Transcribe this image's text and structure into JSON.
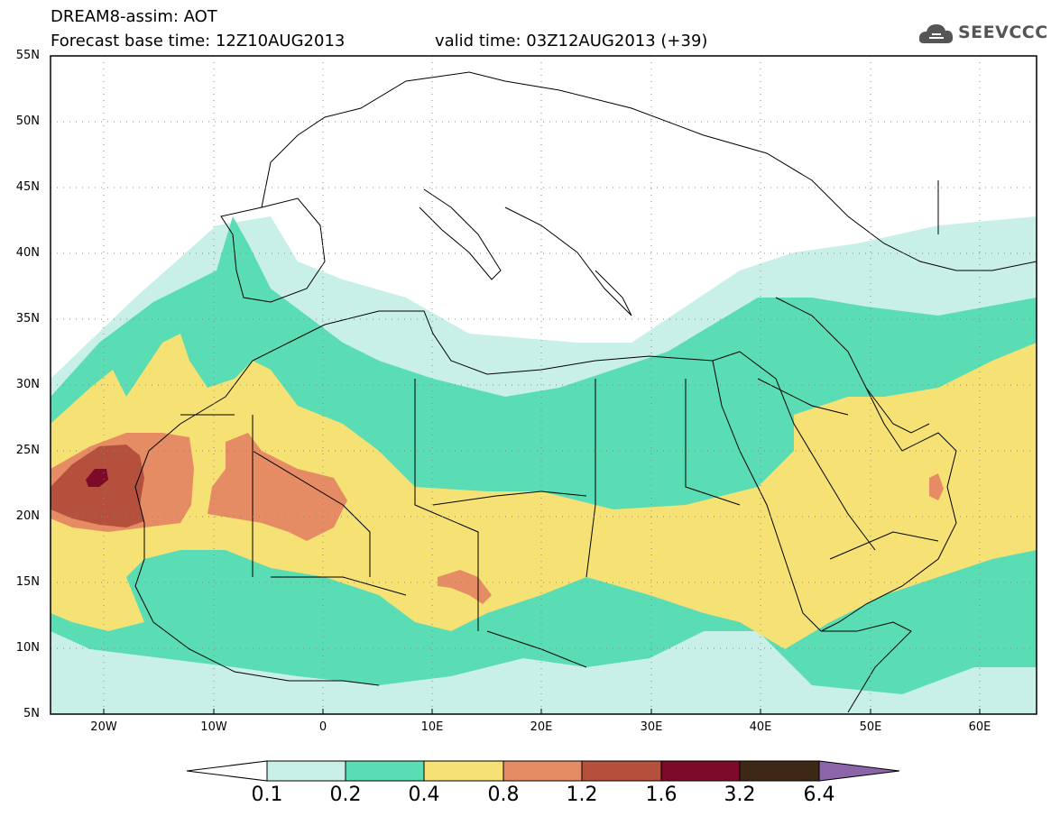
{
  "title": {
    "line1": "DREAM8-assim: AOT",
    "line2": "Forecast base time: 12Z10AUG2013",
    "valid": "valid time: 03Z12AUG2013 (+39)"
  },
  "logo": {
    "text": "SEEVCCC",
    "icon": "cloud-logo-icon"
  },
  "map": {
    "lon_range": [
      -25,
      65
    ],
    "lat_range": [
      5,
      55
    ],
    "lat_labels": [
      "55N",
      "50N",
      "45N",
      "40N",
      "35N",
      "30N",
      "25N",
      "20N",
      "15N",
      "10N",
      "5N"
    ],
    "lon_labels": [
      "20W",
      "10W",
      "0",
      "10E",
      "20E",
      "30E",
      "40E",
      "50E",
      "60E"
    ],
    "grid": "dotted"
  },
  "colorbar": {
    "labels": [
      "0.1",
      "0.2",
      "0.4",
      "0.8",
      "1.2",
      "1.6",
      "3.2",
      "6.4"
    ],
    "colors": [
      "#ffffff",
      "#c8f0e8",
      "#5adcb4",
      "#f5e174",
      "#e68c64",
      "#b4503c",
      "#7d0a28",
      "#3c2814",
      "#8c64aa"
    ]
  },
  "colors": {
    "level_0_1": "#c8f0e8",
    "level_0_2": "#5adcb4",
    "level_0_4": "#f5e174",
    "level_0_8": "#e68c64",
    "level_1_2": "#b4503c",
    "level_1_6": "#7d0a28"
  }
}
